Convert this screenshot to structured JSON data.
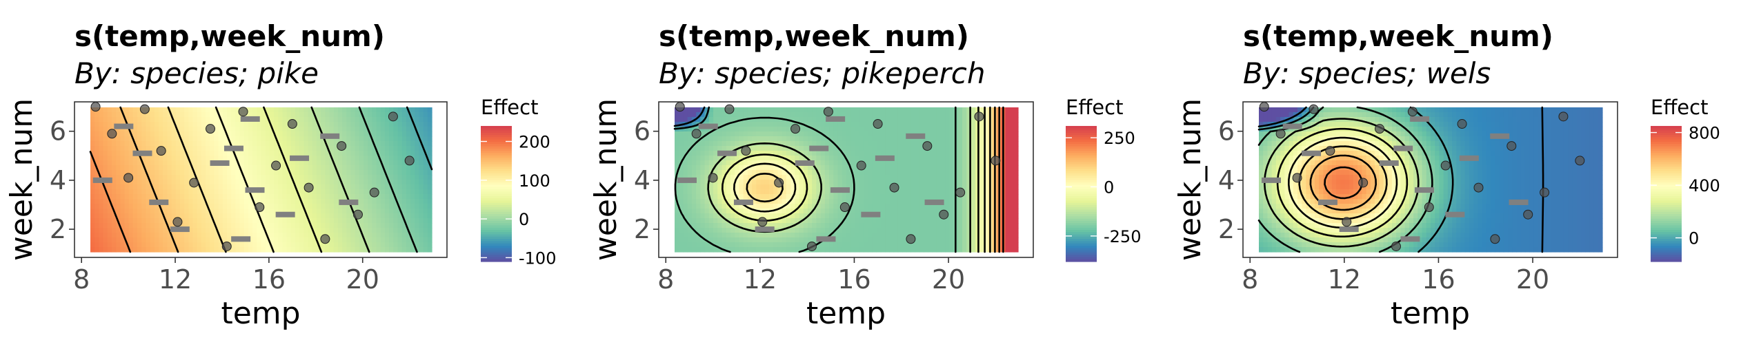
{
  "chart_data": [
    {
      "type": "heatmap",
      "title": "s(temp,week_num)",
      "subtitle": "By: species; pike",
      "xlabel": "temp",
      "ylabel": "week_num",
      "xlim": [
        7.7,
        23.6
      ],
      "ylim": [
        0.85,
        7.2
      ],
      "x_ticks": [
        8,
        12,
        16,
        20
      ],
      "x_tick_labels": [
        "8",
        "12",
        "16",
        "20"
      ],
      "y_ticks": [
        2,
        4,
        6
      ],
      "y_tick_labels": [
        "2",
        "4",
        "6"
      ],
      "legend": {
        "title": "Effect",
        "placement": "right",
        "range": [
          -110,
          240
        ],
        "ticks": [
          200,
          100,
          0,
          -100
        ],
        "tick_labels": [
          "200",
          "100",
          "0",
          "-100"
        ]
      },
      "points": [
        {
          "x": 8.6,
          "y": 7.0
        },
        {
          "x": 9.3,
          "y": 5.9
        },
        {
          "x": 10.0,
          "y": 4.1
        },
        {
          "x": 10.7,
          "y": 6.9
        },
        {
          "x": 11.4,
          "y": 5.2
        },
        {
          "x": 12.1,
          "y": 2.3
        },
        {
          "x": 12.8,
          "y": 3.9
        },
        {
          "x": 13.5,
          "y": 6.1
        },
        {
          "x": 14.2,
          "y": 1.3
        },
        {
          "x": 14.9,
          "y": 6.8
        },
        {
          "x": 15.6,
          "y": 2.9
        },
        {
          "x": 16.3,
          "y": 4.6
        },
        {
          "x": 17.0,
          "y": 6.3
        },
        {
          "x": 17.7,
          "y": 3.7
        },
        {
          "x": 18.4,
          "y": 1.6
        },
        {
          "x": 19.1,
          "y": 5.4
        },
        {
          "x": 19.8,
          "y": 2.6
        },
        {
          "x": 20.5,
          "y": 3.5
        },
        {
          "x": 21.3,
          "y": 6.6
        },
        {
          "x": 22.0,
          "y": 4.8
        }
      ]
    },
    {
      "type": "heatmap",
      "title": "s(temp,week_num)",
      "subtitle": "By: species; pikeperch",
      "xlabel": "temp",
      "ylabel": "week_num",
      "xlim": [
        7.7,
        23.6
      ],
      "ylim": [
        0.85,
        7.2
      ],
      "x_ticks": [
        8,
        12,
        16,
        20
      ],
      "x_tick_labels": [
        "8",
        "12",
        "16",
        "20"
      ],
      "y_ticks": [
        2,
        4,
        6
      ],
      "y_tick_labels": [
        "2",
        "4",
        "6"
      ],
      "legend": {
        "title": "Effect",
        "placement": "right",
        "range": [
          -380,
          310
        ],
        "ticks": [
          250,
          0,
          -250
        ],
        "tick_labels": [
          "250",
          "0",
          "-250"
        ]
      },
      "points": [
        {
          "x": 8.6,
          "y": 7.0
        },
        {
          "x": 9.3,
          "y": 5.9
        },
        {
          "x": 10.0,
          "y": 4.1
        },
        {
          "x": 10.7,
          "y": 6.9
        },
        {
          "x": 11.4,
          "y": 5.2
        },
        {
          "x": 12.1,
          "y": 2.3
        },
        {
          "x": 12.8,
          "y": 3.9
        },
        {
          "x": 13.5,
          "y": 6.1
        },
        {
          "x": 14.2,
          "y": 1.3
        },
        {
          "x": 14.9,
          "y": 6.8
        },
        {
          "x": 15.6,
          "y": 2.9
        },
        {
          "x": 16.3,
          "y": 4.6
        },
        {
          "x": 17.0,
          "y": 6.3
        },
        {
          "x": 17.7,
          "y": 3.7
        },
        {
          "x": 18.4,
          "y": 1.6
        },
        {
          "x": 19.1,
          "y": 5.4
        },
        {
          "x": 19.8,
          "y": 2.6
        },
        {
          "x": 20.5,
          "y": 3.5
        },
        {
          "x": 21.3,
          "y": 6.6
        },
        {
          "x": 22.0,
          "y": 4.8
        }
      ]
    },
    {
      "type": "heatmap",
      "title": "s(temp,week_num)",
      "subtitle": "By: species; wels",
      "xlabel": "temp",
      "ylabel": "week_num",
      "xlim": [
        7.7,
        23.6
      ],
      "ylim": [
        0.85,
        7.2
      ],
      "x_ticks": [
        8,
        12,
        16,
        20
      ],
      "x_tick_labels": [
        "8",
        "12",
        "16",
        "20"
      ],
      "y_ticks": [
        2,
        4,
        6
      ],
      "y_tick_labels": [
        "2",
        "4",
        "6"
      ],
      "legend": {
        "title": "Effect",
        "placement": "right",
        "range": [
          -180,
          850
        ],
        "ticks": [
          800,
          400,
          0
        ],
        "tick_labels": [
          "800",
          "400",
          "0"
        ]
      },
      "points": [
        {
          "x": 8.6,
          "y": 7.0
        },
        {
          "x": 9.3,
          "y": 5.9
        },
        {
          "x": 10.0,
          "y": 4.1
        },
        {
          "x": 10.7,
          "y": 6.9
        },
        {
          "x": 11.4,
          "y": 5.2
        },
        {
          "x": 12.1,
          "y": 2.3
        },
        {
          "x": 12.8,
          "y": 3.9
        },
        {
          "x": 13.5,
          "y": 6.1
        },
        {
          "x": 14.2,
          "y": 1.3
        },
        {
          "x": 14.9,
          "y": 6.8
        },
        {
          "x": 15.6,
          "y": 2.9
        },
        {
          "x": 16.3,
          "y": 4.6
        },
        {
          "x": 17.0,
          "y": 6.3
        },
        {
          "x": 17.7,
          "y": 3.7
        },
        {
          "x": 18.4,
          "y": 1.6
        },
        {
          "x": 19.1,
          "y": 5.4
        },
        {
          "x": 19.8,
          "y": 2.6
        },
        {
          "x": 20.5,
          "y": 3.5
        },
        {
          "x": 21.3,
          "y": 6.6
        },
        {
          "x": 22.0,
          "y": 4.8
        }
      ]
    }
  ],
  "colors": {
    "palette": [
      "#5e4fa2",
      "#3288bd",
      "#66c2a5",
      "#abdda4",
      "#e6f598",
      "#ffffbf",
      "#fee08b",
      "#fdae61",
      "#f46d43",
      "#d53e4f"
    ],
    "contour": "#000000",
    "point_fill": "#555555",
    "rug": "#808080",
    "panel_border": "#333333",
    "tick_text": "#4d4d4d"
  }
}
